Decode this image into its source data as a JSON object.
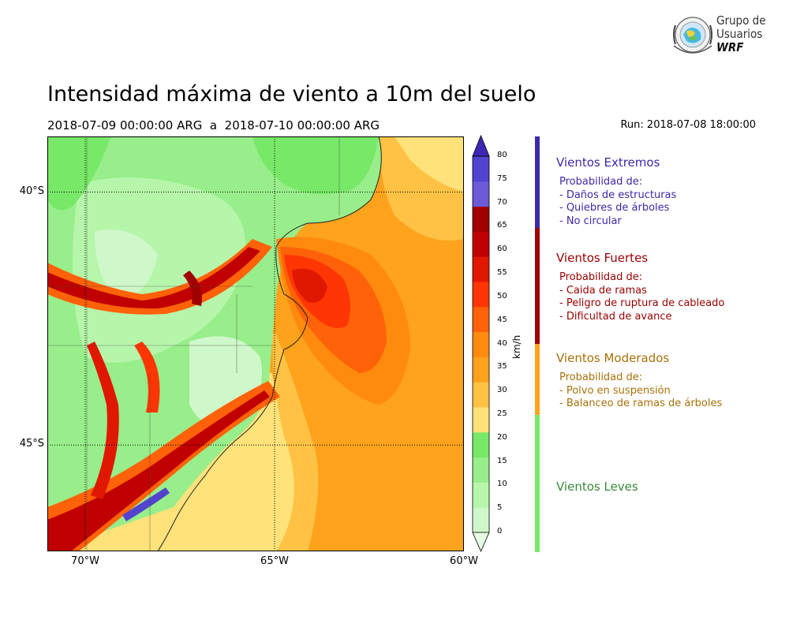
{
  "header": {
    "title": "Intensidad máxima de viento a 10m del suelo",
    "period": "2018-07-09 00:00:00 ARG  a  2018-07-10 00:00:00 ARG",
    "run": "Run: 2018-07-08 18:00:00"
  },
  "logo": {
    "line1": "Grupo de",
    "line2": "Usuarios",
    "line3": "WRF"
  },
  "map": {
    "lon_range": [
      -71,
      -60
    ],
    "lat_range": [
      -47.1,
      -38.9
    ],
    "lat_labels": [
      {
        "value": -40,
        "text": "40°S"
      },
      {
        "value": -45,
        "text": "45°S"
      }
    ],
    "lon_labels": [
      {
        "value": -70,
        "text": "70°W"
      },
      {
        "value": -65,
        "text": "65°W"
      },
      {
        "value": -60,
        "text": "60°W"
      }
    ],
    "grid": true,
    "grid_style": "dotted"
  },
  "colorbar": {
    "unit": "km/h",
    "ticks": [
      "0",
      "5",
      "10",
      "15",
      "20",
      "25",
      "30",
      "35",
      "40",
      "45",
      "50",
      "55",
      "60",
      "65",
      "70",
      "75",
      "80"
    ],
    "colors": [
      "#e5fde3",
      "#cff8ca",
      "#b6f6aa",
      "#98ee8a",
      "#78e868",
      "#ffe27a",
      "#ffc244",
      "#ffa21c",
      "#ff8a0e",
      "#ff6208",
      "#ff3504",
      "#e01802",
      "#c00000",
      "#a00000",
      "#6c5ad8",
      "#5344d0",
      "#3f26b6"
    ]
  },
  "categories": [
    {
      "color": "#3b2aa8",
      "text_color": "#3b2aa8",
      "heading": "Vientos Extremos",
      "lines": [
        "Probabilidad de:",
        "- Daños de estructuras",
        "- Quiebres de árboles",
        "- No circular"
      ]
    },
    {
      "color": "#a00000",
      "text_color": "#9a0000",
      "heading": "Vientos Fuertes",
      "lines": [
        "Probabilidad de:",
        "- Caida de ramas",
        "- Peligro de ruptura de cableado",
        "- Dificultad de avance"
      ]
    },
    {
      "color": "#ffa21c",
      "text_color": "#a8700a",
      "heading": "Vientos Moderados",
      "lines": [
        "Probabilidad de:",
        "- Polvo en suspensión",
        "- Balanceo de ramas de árboles"
      ]
    },
    {
      "color": "#78e868",
      "text_color": "#3a8a3a",
      "heading": "Vientos Leves",
      "lines": []
    }
  ]
}
